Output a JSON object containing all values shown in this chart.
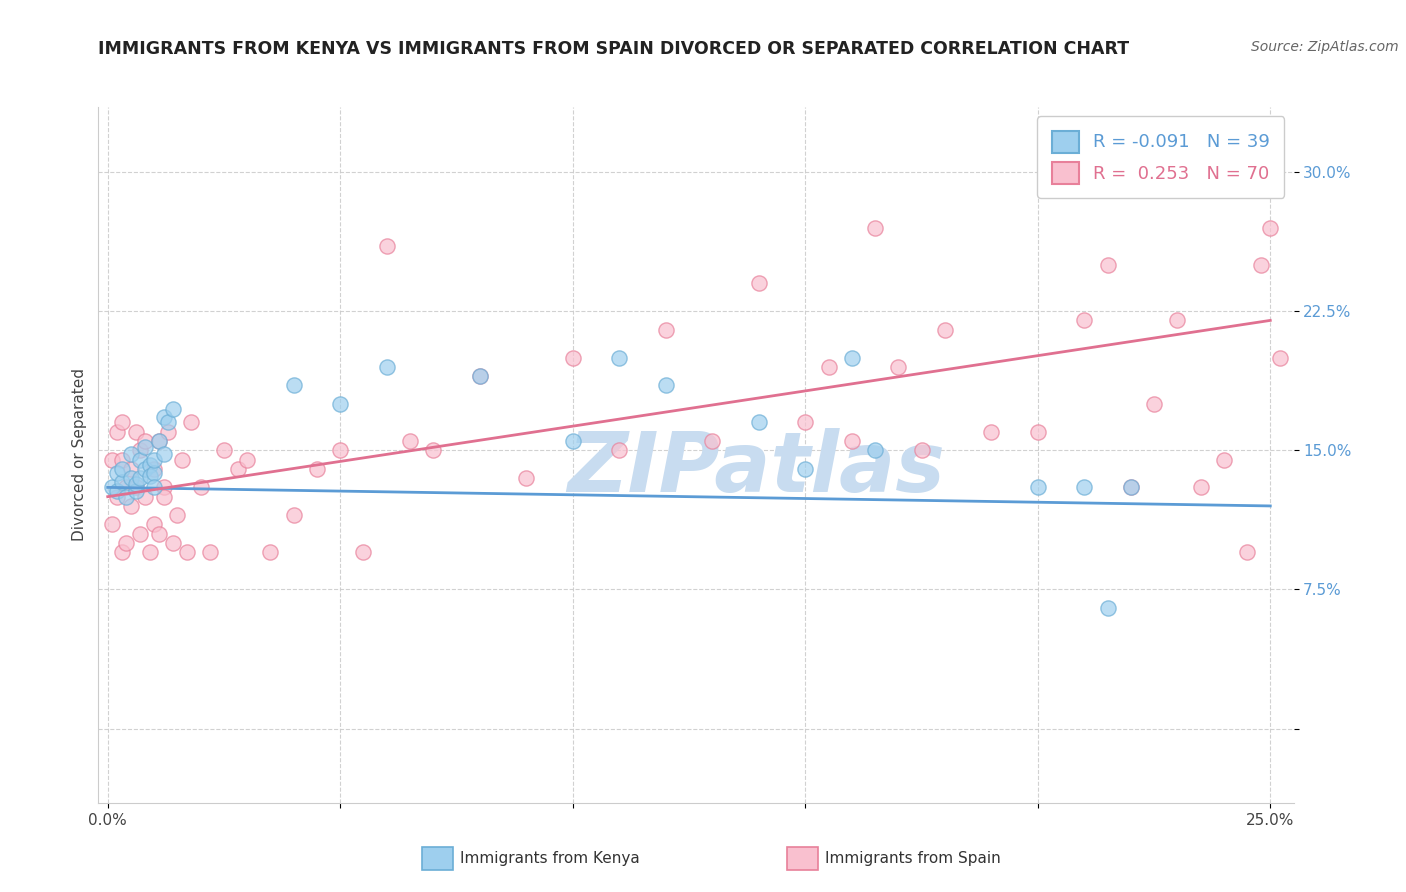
{
  "title": "IMMIGRANTS FROM KENYA VS IMMIGRANTS FROM SPAIN DIVORCED OR SEPARATED CORRELATION CHART",
  "source": "Source: ZipAtlas.com",
  "ylabel": "Divorced or Separated",
  "xlim": [
    -0.002,
    0.255
  ],
  "ylim": [
    -0.04,
    0.335
  ],
  "xticks": [
    0.0,
    0.05,
    0.1,
    0.15,
    0.2,
    0.25
  ],
  "xtick_labels": [
    "0.0%",
    "",
    "",
    "",
    "",
    "25.0%"
  ],
  "yticks": [
    0.0,
    0.075,
    0.15,
    0.225,
    0.3
  ],
  "ytick_labels": [
    "",
    "7.5%",
    "15.0%",
    "22.5%",
    "30.0%"
  ],
  "kenya_color": "#9ECFEE",
  "spain_color": "#F9C0CF",
  "kenya_edge": "#6BAED6",
  "spain_edge": "#E8809A",
  "kenya_trend_color": "#5B9BD5",
  "spain_trend_color": "#E07090",
  "kenya_R": -0.091,
  "kenya_N": 39,
  "spain_R": 0.253,
  "spain_N": 70,
  "watermark": "ZIPatlas",
  "watermark_color": "#C8DCF0",
  "grid_color": "#CCCCCC",
  "background_color": "#ffffff",
  "kenya_trend_x": [
    0.0,
    0.25
  ],
  "kenya_trend_y": [
    0.13,
    0.12
  ],
  "spain_trend_x": [
    0.0,
    0.25
  ],
  "spain_trend_y": [
    0.125,
    0.22
  ],
  "kenya_scatter_x": [
    0.001,
    0.002,
    0.002,
    0.003,
    0.003,
    0.004,
    0.005,
    0.005,
    0.006,
    0.006,
    0.007,
    0.007,
    0.008,
    0.008,
    0.009,
    0.009,
    0.01,
    0.01,
    0.01,
    0.011,
    0.012,
    0.012,
    0.013,
    0.014,
    0.04,
    0.05,
    0.06,
    0.08,
    0.1,
    0.11,
    0.12,
    0.14,
    0.15,
    0.16,
    0.165,
    0.2,
    0.21,
    0.215,
    0.22
  ],
  "kenya_scatter_y": [
    0.13,
    0.128,
    0.138,
    0.133,
    0.14,
    0.125,
    0.148,
    0.135,
    0.128,
    0.132,
    0.145,
    0.135,
    0.14,
    0.152,
    0.142,
    0.136,
    0.138,
    0.13,
    0.145,
    0.155,
    0.168,
    0.148,
    0.165,
    0.172,
    0.185,
    0.175,
    0.195,
    0.19,
    0.155,
    0.2,
    0.185,
    0.165,
    0.14,
    0.2,
    0.15,
    0.13,
    0.13,
    0.065,
    0.13
  ],
  "spain_scatter_x": [
    0.001,
    0.001,
    0.002,
    0.002,
    0.003,
    0.003,
    0.003,
    0.004,
    0.004,
    0.005,
    0.005,
    0.006,
    0.006,
    0.007,
    0.007,
    0.008,
    0.008,
    0.009,
    0.01,
    0.01,
    0.011,
    0.011,
    0.012,
    0.012,
    0.013,
    0.014,
    0.015,
    0.016,
    0.017,
    0.018,
    0.02,
    0.022,
    0.025,
    0.028,
    0.03,
    0.035,
    0.04,
    0.045,
    0.05,
    0.055,
    0.06,
    0.065,
    0.07,
    0.08,
    0.09,
    0.1,
    0.11,
    0.12,
    0.13,
    0.14,
    0.15,
    0.155,
    0.16,
    0.165,
    0.17,
    0.175,
    0.18,
    0.19,
    0.2,
    0.21,
    0.215,
    0.22,
    0.225,
    0.23,
    0.235,
    0.24,
    0.245,
    0.248,
    0.25,
    0.252
  ],
  "spain_scatter_y": [
    0.145,
    0.11,
    0.125,
    0.16,
    0.145,
    0.095,
    0.165,
    0.1,
    0.13,
    0.12,
    0.14,
    0.13,
    0.16,
    0.105,
    0.15,
    0.125,
    0.155,
    0.095,
    0.14,
    0.11,
    0.105,
    0.155,
    0.13,
    0.125,
    0.16,
    0.1,
    0.115,
    0.145,
    0.095,
    0.165,
    0.13,
    0.095,
    0.15,
    0.14,
    0.145,
    0.095,
    0.115,
    0.14,
    0.15,
    0.095,
    0.26,
    0.155,
    0.15,
    0.19,
    0.135,
    0.2,
    0.15,
    0.215,
    0.155,
    0.24,
    0.165,
    0.195,
    0.155,
    0.27,
    0.195,
    0.15,
    0.215,
    0.16,
    0.16,
    0.22,
    0.25,
    0.13,
    0.175,
    0.22,
    0.13,
    0.145,
    0.095,
    0.25,
    0.27,
    0.2
  ]
}
